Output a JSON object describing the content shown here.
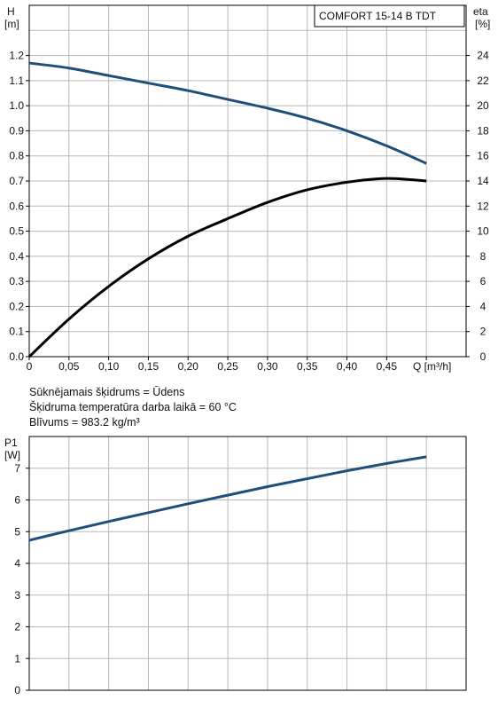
{
  "model_label": "COMFORT 15-14 B TDT",
  "info": {
    "line1": "Sūknējamais šķidrums = Ūdens",
    "line2": "Šķidruma temperatūra darba laikā = 60 °C",
    "line3": "Blīvums = 983.2 kg/m³"
  },
  "colors": {
    "head": "#1f4e79",
    "eff": "#000000",
    "power": "#1f4e79",
    "grid": "#b8b8b8"
  },
  "chart_data": [
    {
      "type": "line",
      "ylabel_left": "H\n[m]",
      "ylabel_right": "eta\n[%]",
      "xlabel": "Q [m³/h]",
      "xlim": [
        0,
        0.55
      ],
      "ylim_left": [
        0,
        1.4
      ],
      "ylim_right": [
        0,
        28
      ],
      "x_ticks": [
        0,
        0.05,
        0.1,
        0.15,
        0.2,
        0.25,
        0.3,
        0.35,
        0.4,
        0.45
      ],
      "x_tick_labels": [
        "0",
        "0,05",
        "0,10",
        "0,15",
        "0,20",
        "0,25",
        "0,30",
        "0,35",
        "0,40",
        "0,45"
      ],
      "y_ticks_left": [
        0.0,
        0.1,
        0.2,
        0.3,
        0.4,
        0.5,
        0.6,
        0.7,
        0.8,
        0.9,
        1.0,
        1.1,
        1.2
      ],
      "y_tick_labels_left": [
        "0.0",
        "0.1",
        "0.2",
        "0.3",
        "0.4",
        "0.5",
        "0.6",
        "0.7",
        "0.8",
        "0.9",
        "1.0",
        "1.1",
        "1.2"
      ],
      "y_ticks_right": [
        0,
        2,
        4,
        6,
        8,
        10,
        12,
        14,
        16,
        18,
        20,
        22,
        24
      ],
      "y_tick_labels_right": [
        "0",
        "2",
        "4",
        "6",
        "8",
        "10",
        "12",
        "14",
        "16",
        "18",
        "20",
        "22",
        "24"
      ],
      "grid": true,
      "series": [
        {
          "axis": "left",
          "x": [
            0,
            0.05,
            0.1,
            0.15,
            0.2,
            0.25,
            0.3,
            0.35,
            0.4,
            0.45,
            0.5
          ],
          "values": [
            1.17,
            1.15,
            1.12,
            1.09,
            1.06,
            1.025,
            0.99,
            0.95,
            0.9,
            0.84,
            0.77
          ]
        },
        {
          "axis": "right",
          "x": [
            0,
            0.05,
            0.1,
            0.15,
            0.2,
            0.25,
            0.3,
            0.35,
            0.4,
            0.45,
            0.5
          ],
          "values": [
            0,
            3.0,
            5.6,
            7.8,
            9.6,
            11.0,
            12.3,
            13.3,
            13.9,
            14.2,
            14.0
          ]
        }
      ]
    },
    {
      "type": "line",
      "ylabel": "P1\n[W]",
      "xlim": [
        0,
        0.55
      ],
      "ylim": [
        0,
        8
      ],
      "x_ticks": [
        0,
        0.05,
        0.1,
        0.15,
        0.2,
        0.25,
        0.3,
        0.35,
        0.4,
        0.45
      ],
      "y_ticks": [
        0,
        1,
        2,
        3,
        4,
        5,
        6,
        7
      ],
      "y_tick_labels": [
        "0",
        "1",
        "2",
        "3",
        "4",
        "5",
        "6",
        "7"
      ],
      "grid": true,
      "series": [
        {
          "x": [
            0,
            0.05,
            0.1,
            0.15,
            0.2,
            0.25,
            0.3,
            0.35,
            0.4,
            0.45,
            0.5
          ],
          "values": [
            4.73,
            5.03,
            5.32,
            5.6,
            5.88,
            6.15,
            6.42,
            6.67,
            6.92,
            7.15,
            7.36
          ]
        }
      ]
    }
  ]
}
